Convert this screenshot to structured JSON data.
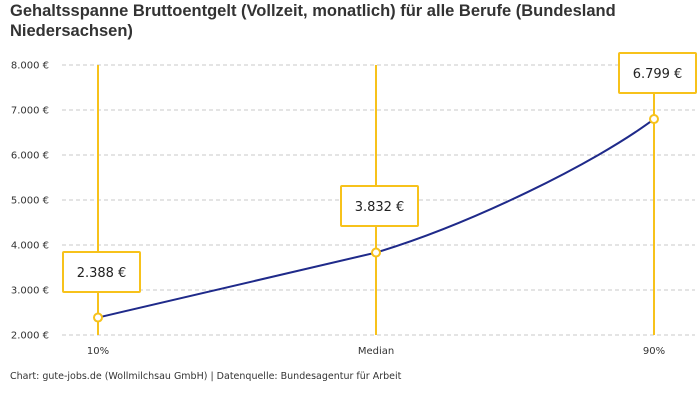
{
  "chart_data": {
    "type": "line",
    "title": "Gehaltsspanne Bruttoentgelt (Vollzeit, monatlich) für alle Berufe (Bundesland Niedersachsen)",
    "categories": [
      "10%",
      "Median",
      "90%"
    ],
    "values": [
      2388,
      3832,
      6799
    ],
    "data_labels": [
      "2.388 €",
      "3.832 €",
      "6.799 €"
    ],
    "ylim": [
      2000,
      8000
    ],
    "yticks": [
      2000,
      3000,
      4000,
      5000,
      6000,
      7000,
      8000
    ],
    "ytick_labels": [
      "2.000 €",
      "3.000 €",
      "4.000 €",
      "5.000 €",
      "6.000 €",
      "7.000 €",
      "8.000 €"
    ],
    "grid": true,
    "line_color": "#1f2a8a",
    "accent_color": "#f7c21b"
  },
  "footer": "Chart: gute-jobs.de (Wollmilchsau GmbH) | Datenquelle: Bundesagentur für Arbeit"
}
